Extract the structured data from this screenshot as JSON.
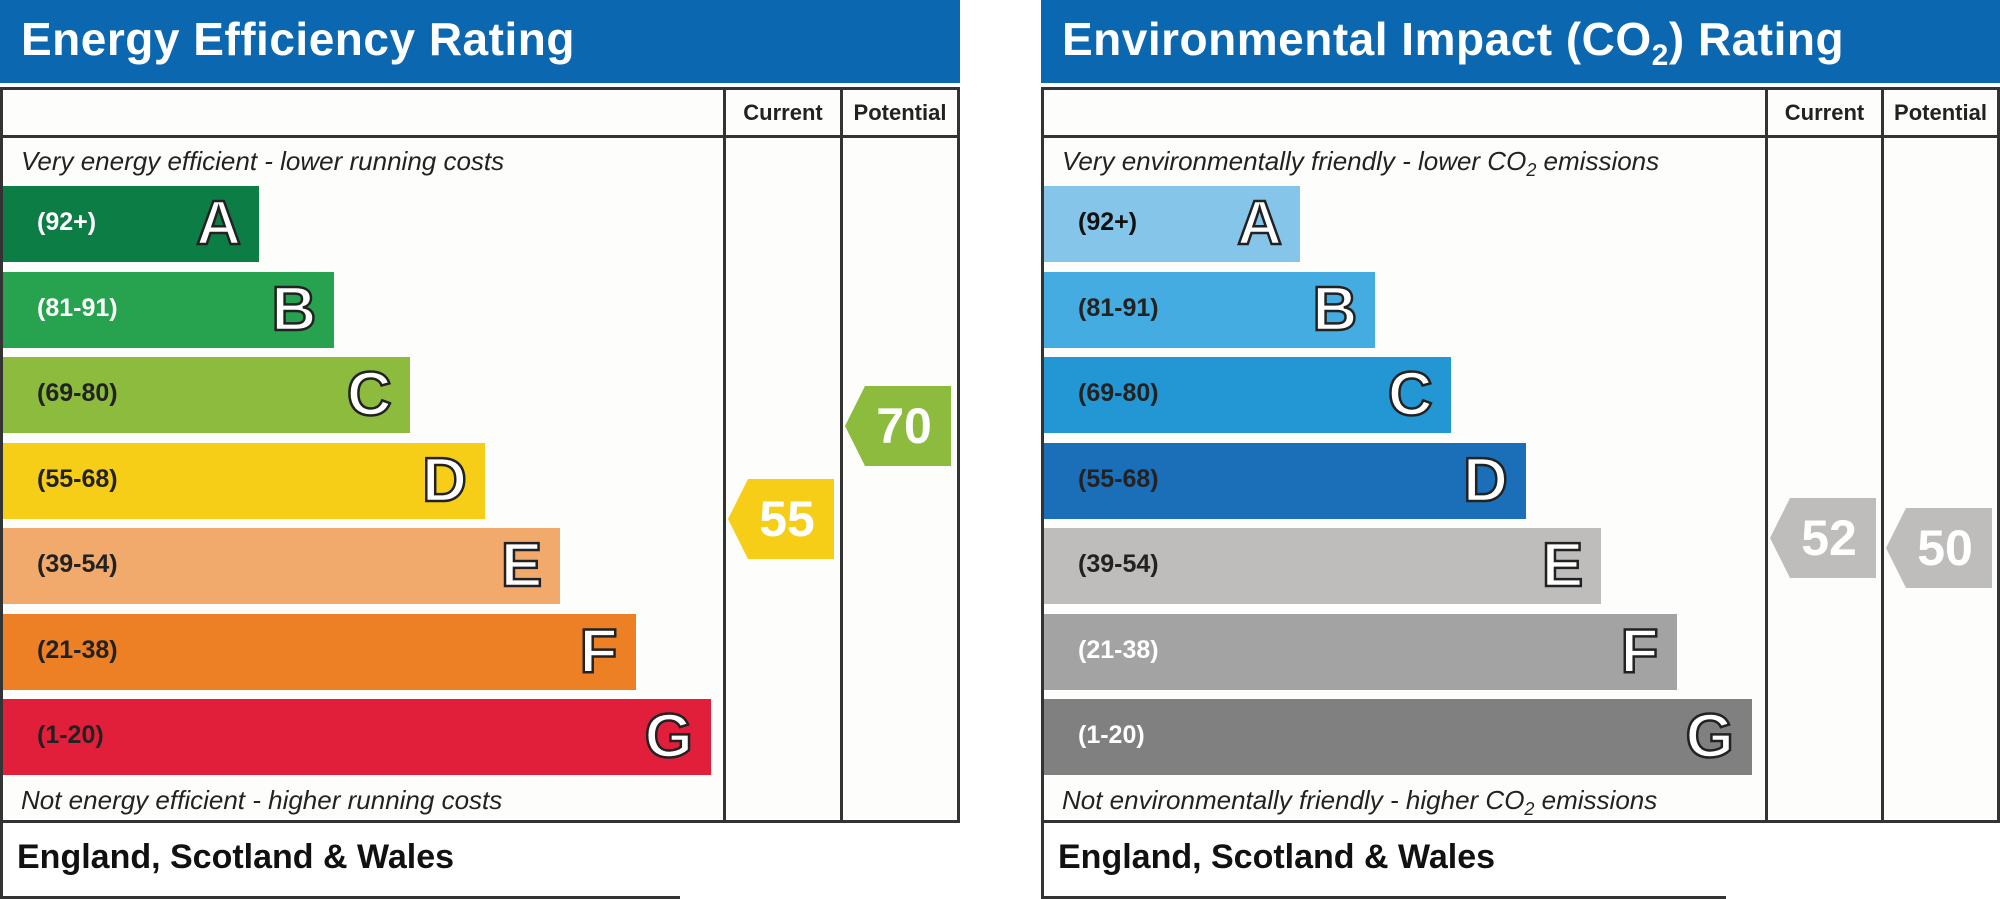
{
  "chart_data": [
    {
      "type": "bar",
      "title": "Energy Efficiency Rating",
      "columns": [
        "Current",
        "Potential"
      ],
      "top_note": "Very energy efficient - lower running costs",
      "bottom_note": "Not energy efficient - higher running costs",
      "region": "England, Scotland & Wales",
      "bands": [
        {
          "letter": "A",
          "range": "(92+)",
          "color": "#0d7d46",
          "label_color": "#ffffff",
          "length": 1
        },
        {
          "letter": "B",
          "range": "(81-91)",
          "color": "#27a24f",
          "label_color": "#ffffff",
          "length": 2
        },
        {
          "letter": "C",
          "range": "(69-80)",
          "color": "#8cbb3e",
          "label_color": "#222222",
          "length": 3
        },
        {
          "letter": "D",
          "range": "(55-68)",
          "color": "#f6cd17",
          "label_color": "#222222",
          "length": 4
        },
        {
          "letter": "E",
          "range": "(39-54)",
          "color": "#f2a96c",
          "label_color": "#222222",
          "length": 5
        },
        {
          "letter": "F",
          "range": "(21-38)",
          "color": "#ed7f25",
          "label_color": "#222222",
          "length": 6
        },
        {
          "letter": "G",
          "range": "(1-20)",
          "color": "#e21f3a",
          "label_color": "#222222",
          "length": 7
        }
      ],
      "current": {
        "value": 55,
        "band": "D",
        "color": "#f6cd17"
      },
      "potential": {
        "value": 70,
        "band": "C",
        "color": "#8cbb3e"
      }
    },
    {
      "type": "bar",
      "title": "Environmental Impact (CO₂) Rating",
      "columns": [
        "Current",
        "Potential"
      ],
      "top_note": "Very environmentally friendly - lower CO₂ emissions",
      "bottom_note": "Not environmentally friendly - higher CO₂ emissions",
      "region": "England, Scotland & Wales",
      "bands": [
        {
          "letter": "A",
          "range": "(92+)",
          "color": "#86c5ea",
          "label_color": "#111111",
          "length": 1
        },
        {
          "letter": "B",
          "range": "(81-91)",
          "color": "#44ace0",
          "label_color": "#222222",
          "length": 2
        },
        {
          "letter": "C",
          "range": "(69-80)",
          "color": "#2397d4",
          "label_color": "#222222",
          "length": 3
        },
        {
          "letter": "D",
          "range": "(55-68)",
          "color": "#1a6fb8",
          "label_color": "#222222",
          "length": 4
        },
        {
          "letter": "E",
          "range": "(39-54)",
          "color": "#bebdbb",
          "label_color": "#222222",
          "length": 5
        },
        {
          "letter": "F",
          "range": "(21-38)",
          "color": "#a3a3a3",
          "label_color": "#ffffff",
          "length": 6
        },
        {
          "letter": "G",
          "range": "(1-20)",
          "color": "#808080",
          "label_color": "#ffffff",
          "length": 7
        }
      ],
      "current": {
        "value": 52,
        "band": "E",
        "color": "#bebdbb"
      },
      "potential": {
        "value": 50,
        "band": "E",
        "color": "#bebdbb"
      }
    }
  ]
}
